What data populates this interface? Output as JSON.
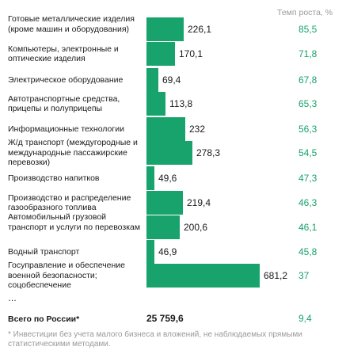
{
  "chart_data": {
    "type": "bar",
    "orientation": "horizontal",
    "rate_header": "Темп роста, %",
    "categories": [
      "Готовые металлические изделия (кроме машин и оборудования)",
      "Компьютеры, электронные и оптические изделия",
      "Электрическое оборудование",
      "Автотранспортные средства, прицепы и полуприцепы",
      "Информационные технологии",
      "Ж/д транспорт (междугородные и международные пассажирские перевозки)",
      "Производство напитков",
      "Производство и распределение газообразного топлива",
      "Автомобильный грузовой транспорт и услуги по перевозкам",
      "Водный транспорт",
      "Госуправление и обеспечение военной безопасности; соцобеспечение"
    ],
    "values": [
      226.1,
      170.1,
      69.4,
      113.8,
      232,
      278.3,
      49.6,
      219.4,
      200.6,
      46.9,
      681.2
    ],
    "value_labels": [
      "226,1",
      "170,1",
      "69,4",
      "113,8",
      "232",
      "278,3",
      "49,6",
      "219,4",
      "200,6",
      "46,9",
      "681,2"
    ],
    "growth_rates": [
      "85,5",
      "71,8",
      "67,8",
      "65,3",
      "56,3",
      "54,5",
      "47,3",
      "46,3",
      "46,1",
      "45,8",
      "37"
    ],
    "ellipsis": "…",
    "total": {
      "label": "Всего по России*",
      "value": "25 759,6",
      "rate": "9,4"
    },
    "footnote": "* Инвестиции без учета малого бизнеса и вложений, не наблюдаемых прямыми статистическими методами.",
    "bar_color": "#17a36b",
    "rate_color": "#17a36b"
  }
}
